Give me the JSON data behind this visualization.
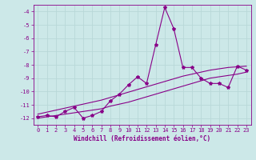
{
  "xlabel": "Windchill (Refroidissement éolien,°C)",
  "ylabel": "",
  "bg_color": "#cce8e8",
  "grid_color": "#aacccc",
  "line_color": "#880088",
  "marker_color": "#880088",
  "xlim": [
    -0.5,
    23.5
  ],
  "ylim": [
    -12.5,
    -3.5
  ],
  "xticks": [
    0,
    1,
    2,
    3,
    4,
    5,
    6,
    7,
    8,
    9,
    10,
    11,
    12,
    13,
    14,
    15,
    16,
    17,
    18,
    19,
    20,
    21,
    22,
    23
  ],
  "yticks": [
    -12,
    -11,
    -10,
    -9,
    -8,
    -7,
    -6,
    -5,
    -4
  ],
  "x_data": [
    0,
    1,
    2,
    3,
    4,
    5,
    6,
    7,
    8,
    9,
    10,
    11,
    12,
    13,
    14,
    15,
    16,
    17,
    18,
    19,
    20,
    21,
    22,
    23
  ],
  "y_main": [
    -11.9,
    -11.8,
    -11.9,
    -11.5,
    -11.2,
    -12.0,
    -11.8,
    -11.5,
    -10.7,
    -10.2,
    -9.5,
    -8.9,
    -9.4,
    -6.5,
    -3.7,
    -5.3,
    -8.2,
    -8.2,
    -9.0,
    -9.4,
    -9.4,
    -9.7,
    -8.1,
    -8.4
  ],
  "y_upper": [
    -11.7,
    -11.55,
    -11.4,
    -11.25,
    -11.1,
    -10.95,
    -10.8,
    -10.65,
    -10.45,
    -10.25,
    -10.05,
    -9.85,
    -9.65,
    -9.45,
    -9.25,
    -9.05,
    -8.85,
    -8.7,
    -8.55,
    -8.4,
    -8.3,
    -8.2,
    -8.15,
    -8.1
  ],
  "y_lower": [
    -12.0,
    -11.9,
    -11.8,
    -11.7,
    -11.6,
    -11.5,
    -11.4,
    -11.3,
    -11.1,
    -10.95,
    -10.8,
    -10.6,
    -10.4,
    -10.2,
    -10.0,
    -9.8,
    -9.6,
    -9.4,
    -9.2,
    -9.0,
    -8.9,
    -8.8,
    -8.7,
    -8.55
  ],
  "title_fontsize": 7,
  "label_fontsize": 5.5,
  "tick_fontsize": 5
}
